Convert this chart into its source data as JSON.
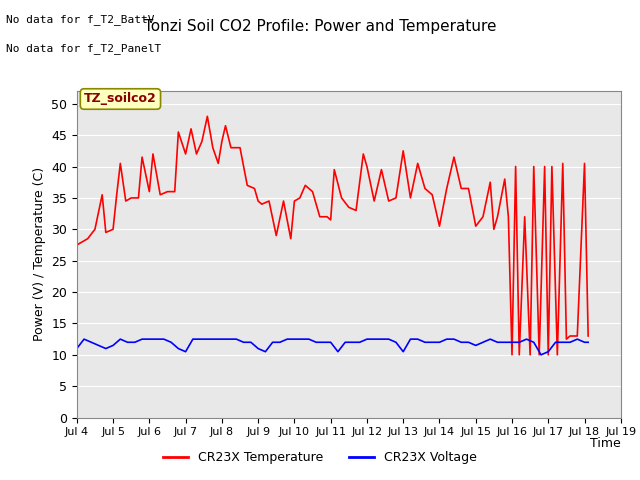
{
  "title": "Tonzi Soil CO2 Profile: Power and Temperature",
  "ylabel": "Power (V) / Temperature (C)",
  "xlabel": "Time",
  "top_left_text_line1": "No data for f_T2_BattV",
  "top_left_text_line2": "No data for f_T2_PanelT",
  "legend_box_label": "TZ_soilco2",
  "legend_entries": [
    "CR23X Temperature",
    "CR23X Voltage"
  ],
  "legend_colors": [
    "red",
    "blue"
  ],
  "ylim": [
    0,
    52
  ],
  "yticks": [
    0,
    5,
    10,
    15,
    20,
    25,
    30,
    35,
    40,
    45,
    50
  ],
  "xlim": [
    4,
    19
  ],
  "xtick_positions": [
    4,
    5,
    6,
    7,
    8,
    9,
    10,
    11,
    12,
    13,
    14,
    15,
    16,
    17,
    18,
    19
  ],
  "xtick_labels": [
    "Jul 4",
    "Jul 5",
    "Jul 6",
    "Jul 7",
    "Jul 8",
    "Jul 9",
    "Jul 10",
    "Jul 11",
    "Jul 12",
    "Jul 13",
    "Jul 14",
    "Jul 15",
    "Jul 16",
    "Jul 17",
    "Jul 18",
    "Jul 19"
  ],
  "bg_color": "#e8e8e8",
  "grid_color": "white",
  "temp_color": "red",
  "volt_color": "blue",
  "temp_data": [
    [
      4.0,
      27.5
    ],
    [
      4.3,
      28.5
    ],
    [
      4.5,
      30.0
    ],
    [
      4.7,
      35.5
    ],
    [
      4.8,
      29.5
    ],
    [
      5.0,
      30.0
    ],
    [
      5.1,
      35.5
    ],
    [
      5.2,
      40.5
    ],
    [
      5.35,
      34.5
    ],
    [
      5.5,
      35.0
    ],
    [
      5.7,
      35.0
    ],
    [
      5.8,
      41.5
    ],
    [
      6.0,
      36.0
    ],
    [
      6.1,
      42.0
    ],
    [
      6.3,
      35.5
    ],
    [
      6.5,
      36.0
    ],
    [
      6.7,
      36.0
    ],
    [
      6.8,
      45.5
    ],
    [
      7.0,
      42.0
    ],
    [
      7.15,
      46.0
    ],
    [
      7.3,
      42.0
    ],
    [
      7.45,
      44.0
    ],
    [
      7.6,
      48.0
    ],
    [
      7.75,
      43.0
    ],
    [
      7.9,
      40.5
    ],
    [
      8.0,
      44.0
    ],
    [
      8.1,
      46.5
    ],
    [
      8.25,
      43.0
    ],
    [
      8.5,
      43.0
    ],
    [
      8.7,
      37.0
    ],
    [
      8.9,
      36.5
    ],
    [
      9.0,
      34.5
    ],
    [
      9.1,
      34.0
    ],
    [
      9.3,
      34.5
    ],
    [
      9.5,
      29.0
    ],
    [
      9.7,
      34.5
    ],
    [
      9.9,
      28.5
    ],
    [
      10.0,
      34.5
    ],
    [
      10.15,
      35.0
    ],
    [
      10.3,
      37.0
    ],
    [
      10.5,
      36.0
    ],
    [
      10.7,
      32.0
    ],
    [
      10.9,
      32.0
    ],
    [
      11.0,
      31.5
    ],
    [
      11.1,
      39.5
    ],
    [
      11.3,
      35.0
    ],
    [
      11.5,
      33.5
    ],
    [
      11.7,
      33.0
    ],
    [
      11.9,
      42.0
    ],
    [
      12.0,
      40.0
    ],
    [
      12.2,
      34.5
    ],
    [
      12.4,
      39.5
    ],
    [
      12.6,
      34.5
    ],
    [
      12.8,
      35.0
    ],
    [
      13.0,
      42.5
    ],
    [
      13.2,
      35.0
    ],
    [
      13.4,
      40.5
    ],
    [
      13.6,
      36.5
    ],
    [
      13.8,
      35.5
    ],
    [
      14.0,
      30.5
    ],
    [
      14.2,
      36.5
    ],
    [
      14.4,
      41.5
    ],
    [
      14.6,
      36.5
    ],
    [
      14.8,
      36.5
    ],
    [
      15.0,
      30.5
    ],
    [
      15.2,
      32.0
    ],
    [
      15.4,
      37.5
    ],
    [
      15.5,
      30.0
    ],
    [
      15.6,
      32.0
    ],
    [
      15.8,
      38.0
    ],
    [
      15.9,
      32.0
    ],
    [
      16.0,
      10.0
    ],
    [
      16.1,
      40.0
    ],
    [
      16.2,
      10.0
    ],
    [
      16.35,
      32.0
    ],
    [
      16.5,
      10.0
    ],
    [
      16.6,
      40.0
    ],
    [
      16.75,
      10.0
    ],
    [
      16.9,
      40.0
    ],
    [
      17.0,
      10.0
    ],
    [
      17.1,
      40.0
    ],
    [
      17.25,
      10.0
    ],
    [
      17.4,
      40.5
    ],
    [
      17.5,
      12.5
    ],
    [
      17.6,
      13.0
    ],
    [
      17.8,
      13.0
    ],
    [
      18.0,
      40.5
    ],
    [
      18.1,
      13.0
    ]
  ],
  "volt_data": [
    [
      4.0,
      11.0
    ],
    [
      4.2,
      12.5
    ],
    [
      4.4,
      12.0
    ],
    [
      4.6,
      11.5
    ],
    [
      4.8,
      11.0
    ],
    [
      5.0,
      11.5
    ],
    [
      5.2,
      12.5
    ],
    [
      5.4,
      12.0
    ],
    [
      5.6,
      12.0
    ],
    [
      5.8,
      12.5
    ],
    [
      6.0,
      12.5
    ],
    [
      6.2,
      12.5
    ],
    [
      6.4,
      12.5
    ],
    [
      6.6,
      12.0
    ],
    [
      6.8,
      11.0
    ],
    [
      7.0,
      10.5
    ],
    [
      7.2,
      12.5
    ],
    [
      7.4,
      12.5
    ],
    [
      7.6,
      12.5
    ],
    [
      7.8,
      12.5
    ],
    [
      8.0,
      12.5
    ],
    [
      8.2,
      12.5
    ],
    [
      8.4,
      12.5
    ],
    [
      8.6,
      12.0
    ],
    [
      8.8,
      12.0
    ],
    [
      9.0,
      11.0
    ],
    [
      9.2,
      10.5
    ],
    [
      9.4,
      12.0
    ],
    [
      9.6,
      12.0
    ],
    [
      9.8,
      12.5
    ],
    [
      10.0,
      12.5
    ],
    [
      10.2,
      12.5
    ],
    [
      10.4,
      12.5
    ],
    [
      10.6,
      12.0
    ],
    [
      10.8,
      12.0
    ],
    [
      11.0,
      12.0
    ],
    [
      11.2,
      10.5
    ],
    [
      11.4,
      12.0
    ],
    [
      11.6,
      12.0
    ],
    [
      11.8,
      12.0
    ],
    [
      12.0,
      12.5
    ],
    [
      12.2,
      12.5
    ],
    [
      12.4,
      12.5
    ],
    [
      12.6,
      12.5
    ],
    [
      12.8,
      12.0
    ],
    [
      13.0,
      10.5
    ],
    [
      13.2,
      12.5
    ],
    [
      13.4,
      12.5
    ],
    [
      13.6,
      12.0
    ],
    [
      13.8,
      12.0
    ],
    [
      14.0,
      12.0
    ],
    [
      14.2,
      12.5
    ],
    [
      14.4,
      12.5
    ],
    [
      14.6,
      12.0
    ],
    [
      14.8,
      12.0
    ],
    [
      15.0,
      11.5
    ],
    [
      15.2,
      12.0
    ],
    [
      15.4,
      12.5
    ],
    [
      15.6,
      12.0
    ],
    [
      15.8,
      12.0
    ],
    [
      16.0,
      12.0
    ],
    [
      16.2,
      12.0
    ],
    [
      16.4,
      12.5
    ],
    [
      16.6,
      12.0
    ],
    [
      16.8,
      10.0
    ],
    [
      17.0,
      10.5
    ],
    [
      17.2,
      12.0
    ],
    [
      17.4,
      12.0
    ],
    [
      17.6,
      12.0
    ],
    [
      17.8,
      12.5
    ],
    [
      18.0,
      12.0
    ],
    [
      18.1,
      12.0
    ]
  ]
}
